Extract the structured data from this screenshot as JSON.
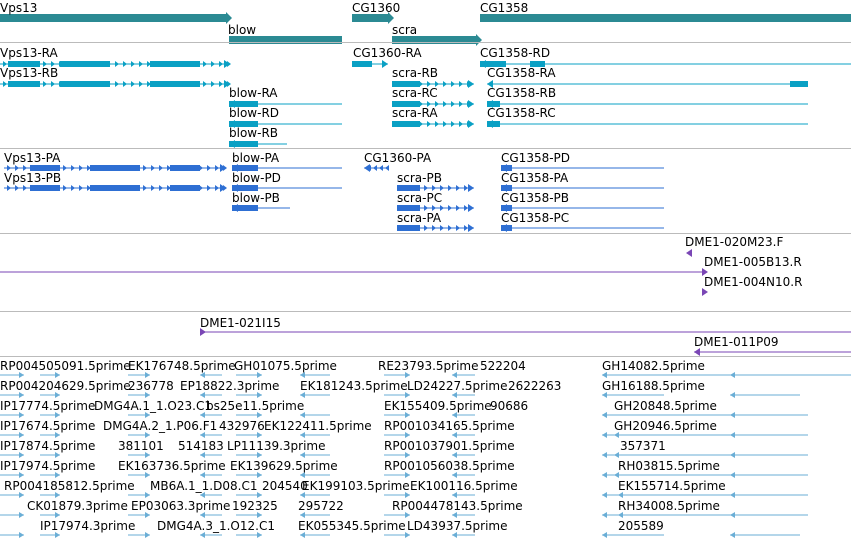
{
  "colors": {
    "gene": "#2b8a93",
    "transcript": "#0aa0c4",
    "cds": "#2e6fd3",
    "clone": "#7a46b5",
    "est": "#6aaed6",
    "separator": "#bbbbbb"
  },
  "gene_track": {
    "labels": [
      "Vps13",
      "blow",
      "CG1360",
      "scra",
      "CG1358"
    ]
  },
  "transcript_track": {
    "labels": [
      "Vps13-RA",
      "Vps13-RB",
      "CG1360-RA",
      "CG1358-RD",
      "scra-RB",
      "CG1358-RA",
      "blow-RA",
      "scra-RC",
      "CG1358-RB",
      "blow-RD",
      "scra-RA",
      "CG1358-RC",
      "blow-RB"
    ]
  },
  "protein_track": {
    "labels": [
      "Vps13-PA",
      "blow-PA",
      "CG1360-PA",
      "CG1358-PD",
      "Vps13-PB",
      "blow-PD",
      "scra-PB",
      "CG1358-PA",
      "blow-PB",
      "scra-PC",
      "CG1358-PB",
      "scra-PA",
      "CG1358-PC"
    ]
  },
  "clone_track_1": {
    "labels": [
      "DME1-020M23.F",
      "DME1-005B13.R",
      "DME1-004N10.R"
    ]
  },
  "clone_track_2": {
    "labels": [
      "DME1-021I15",
      "DME1-011P09"
    ]
  },
  "est_track": {
    "labels": [
      "RP004505091.5prime",
      "EK176748.5prime",
      "GH01075.5prime",
      "RE23793.5prime",
      "522204",
      "GH14082.5prime",
      "RP004204629.5prime",
      "236778",
      "EP18822.3prime",
      "EK181243.5prime",
      "LD24227.5prime",
      "2622263",
      "GH16188.5prime",
      "IP17774.5prime",
      "DMG4A.1_1.O23.C1",
      "bs25e11.5prime",
      "EK155409.5prime",
      "90686",
      "GH20848.5prime",
      "IP17674.5prime",
      "DMG4A.2_1.P06.F1",
      "432976",
      "EK122411.5prime",
      "RP001034165.5prime",
      "GH20946.5prime",
      "IP17874.5prime",
      "381101",
      "514183",
      "LP11139.3prime",
      "RP001037901.5prime",
      "357371",
      "IP17974.5prime",
      "EK163736.5prime",
      "EK139629.5prime",
      "RP001056038.5prime",
      "RH03815.5prime",
      "RP004185812.5prime",
      "MB6A.1_1.D08.C1",
      "204540",
      "EK199103.5prime",
      "EK100116.5prime",
      "EK155714.5prime",
      "CK01879.3prime",
      "EP03063.3prime",
      "192325",
      "295722",
      "RP004478143.5prime",
      "RH34008.5prime",
      "IP17974.3prime",
      "DMG4A.3_1.O12.C1",
      "EK055345.5prime",
      "LD43937.5prime",
      "205589"
    ]
  }
}
